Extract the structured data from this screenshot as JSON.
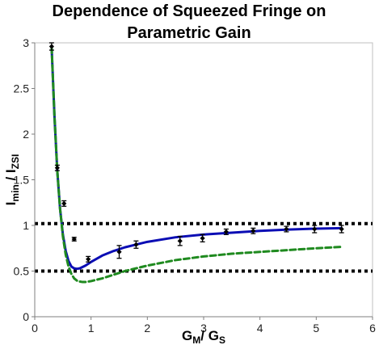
{
  "chart_data": {
    "type": "scatter",
    "title_line1": "Dependence of Squeezed Fringe on",
    "title_line2": "Parametric Gain",
    "xlabel": {
      "main": "G",
      "sub1": "M",
      "sep": "/ G",
      "sub2": "S"
    },
    "ylabel": {
      "main": "I",
      "sub1": "min",
      "sep": " / I",
      "sub2": "ZSI"
    },
    "xlim": [
      0,
      6
    ],
    "ylim": [
      0,
      3
    ],
    "xticks": [
      "0",
      "1",
      "2",
      "3",
      "4",
      "5",
      "6"
    ],
    "yticks": [
      "0",
      "0.5",
      "1",
      "1.5",
      "2",
      "2.5",
      "3"
    ],
    "grid": false,
    "reference_lines": [
      1.02,
      0.5
    ],
    "series": [
      {
        "kind": "points_with_error",
        "color": "#000000",
        "x": [
          0.3,
          0.4,
          0.52,
          0.7,
          0.95,
          1.5,
          1.8,
          2.58,
          2.98,
          3.4,
          3.88,
          4.47,
          4.97,
          5.45
        ],
        "y": [
          2.96,
          1.63,
          1.24,
          0.85,
          0.63,
          0.71,
          0.79,
          0.83,
          0.86,
          0.93,
          0.94,
          0.96,
          0.96,
          0.96
        ],
        "err": [
          0.04,
          0.03,
          0.03,
          0.02,
          0.03,
          0.07,
          0.04,
          0.05,
          0.04,
          0.03,
          0.03,
          0.03,
          0.04,
          0.04
        ]
      },
      {
        "kind": "line",
        "style": "solid",
        "color": "#0b0db4",
        "x": [
          0.3,
          0.35,
          0.4,
          0.45,
          0.5,
          0.55,
          0.6,
          0.65,
          0.7,
          0.75,
          0.8,
          0.9,
          1.0,
          1.2,
          1.4,
          1.6,
          1.8,
          2.0,
          2.5,
          3.0,
          3.5,
          4.0,
          4.5,
          5.0,
          5.45
        ],
        "y": [
          2.95,
          2.2,
          1.6,
          1.18,
          0.9,
          0.72,
          0.61,
          0.55,
          0.53,
          0.525,
          0.53,
          0.56,
          0.6,
          0.67,
          0.72,
          0.76,
          0.79,
          0.82,
          0.87,
          0.9,
          0.92,
          0.94,
          0.955,
          0.965,
          0.97
        ]
      },
      {
        "kind": "line",
        "style": "dashed",
        "color": "#1f8a1f",
        "x": [
          0.3,
          0.35,
          0.4,
          0.45,
          0.5,
          0.55,
          0.6,
          0.65,
          0.7,
          0.75,
          0.8,
          0.85,
          0.9,
          0.95,
          1.0,
          1.2,
          1.4,
          1.6,
          1.8,
          2.0,
          2.5,
          3.0,
          3.5,
          4.0,
          4.5,
          5.0,
          5.45
        ],
        "y": [
          2.95,
          2.2,
          1.6,
          1.18,
          0.88,
          0.68,
          0.55,
          0.47,
          0.42,
          0.395,
          0.385,
          0.38,
          0.38,
          0.385,
          0.39,
          0.42,
          0.46,
          0.5,
          0.53,
          0.56,
          0.62,
          0.66,
          0.69,
          0.71,
          0.73,
          0.75,
          0.765
        ]
      }
    ]
  }
}
